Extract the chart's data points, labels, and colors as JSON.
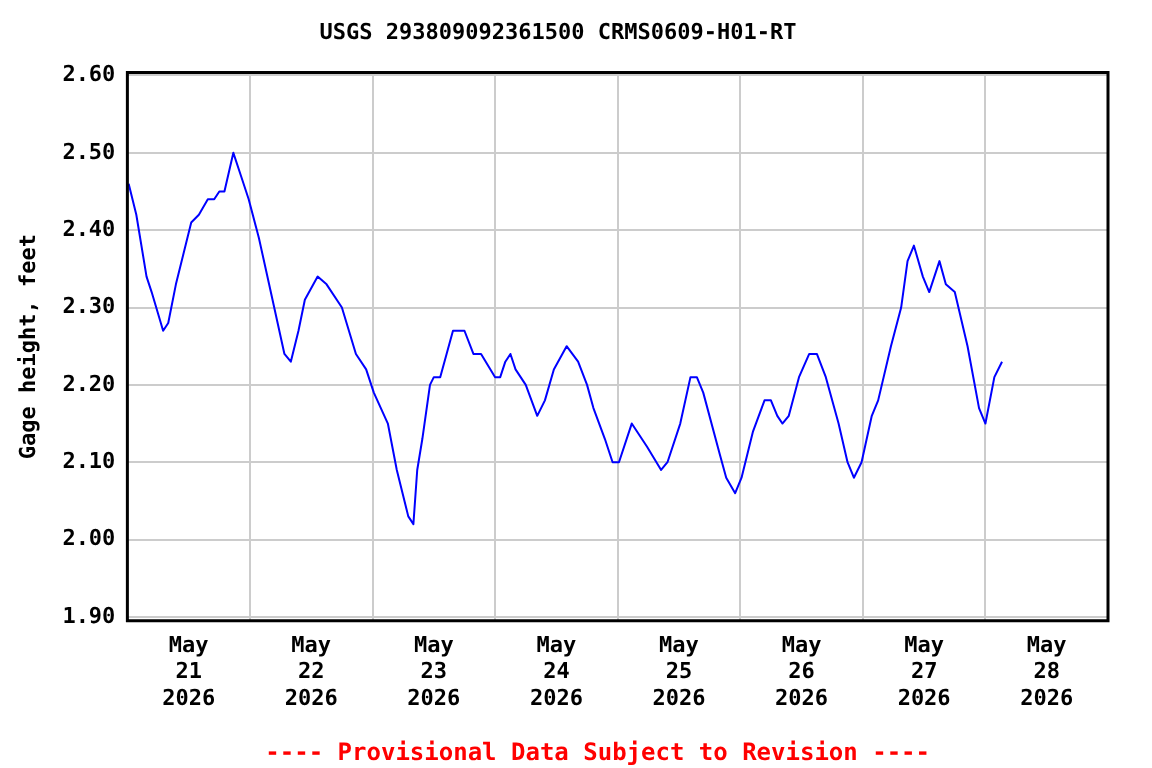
{
  "chart_data": {
    "type": "line",
    "title": "USGS 293809092361500 CRMS0609-H01-RT",
    "ylabel": "Gage height, feet",
    "annotations": [
      "---- Provisional Data Subject to Revision ----"
    ],
    "x": [
      "2026-05-21T00:15",
      "2026-05-21T01:45",
      "2026-05-21T03:45",
      "2026-05-21T04:45",
      "2026-05-21T07:00",
      "2026-05-21T08:00",
      "2026-05-21T09:30",
      "2026-05-21T12:30",
      "2026-05-21T14:00",
      "2026-05-21T15:45",
      "2026-05-21T17:00",
      "2026-05-21T18:00",
      "2026-05-21T19:00",
      "2026-05-21T20:45",
      "2026-05-21T22:15",
      "2026-05-21T23:45",
      "2026-05-22T01:45",
      "2026-05-22T03:45",
      "2026-05-22T06:45",
      "2026-05-22T08:00",
      "2026-05-22T09:30",
      "2026-05-22T10:45",
      "2026-05-22T13:15",
      "2026-05-22T15:00",
      "2026-05-22T18:00",
      "2026-05-22T20:45",
      "2026-05-22T22:45",
      "2026-05-23T00:15",
      "2026-05-23T03:00",
      "2026-05-23T04:45",
      "2026-05-23T07:00",
      "2026-05-23T08:00",
      "2026-05-23T08:45",
      "2026-05-23T09:45",
      "2026-05-23T11:15",
      "2026-05-23T12:00",
      "2026-05-23T13:15",
      "2026-05-23T14:30",
      "2026-05-23T15:45",
      "2026-05-23T18:00",
      "2026-05-23T19:45",
      "2026-05-23T21:15",
      "2026-05-24T00:00",
      "2026-05-24T01:00",
      "2026-05-24T02:00",
      "2026-05-24T03:00",
      "2026-05-24T04:00",
      "2026-05-24T06:00",
      "2026-05-24T08:15",
      "2026-05-24T09:45",
      "2026-05-24T11:30",
      "2026-05-24T14:00",
      "2026-05-24T16:15",
      "2026-05-24T18:00",
      "2026-05-24T19:15",
      "2026-05-24T21:30",
      "2026-05-24T23:00",
      "2026-05-25T00:15",
      "2026-05-25T02:45",
      "2026-05-25T05:45",
      "2026-05-25T08:30",
      "2026-05-25T09:45",
      "2026-05-25T12:15",
      "2026-05-25T14:15",
      "2026-05-25T15:30",
      "2026-05-25T16:45",
      "2026-05-25T20:00",
      "2026-05-25T21:15",
      "2026-05-25T23:00",
      "2026-05-26T00:15",
      "2026-05-26T02:30",
      "2026-05-26T04:45",
      "2026-05-26T06:00",
      "2026-05-26T07:15",
      "2026-05-26T08:15",
      "2026-05-26T09:30",
      "2026-05-26T11:30",
      "2026-05-26T13:30",
      "2026-05-26T15:00",
      "2026-05-26T16:45",
      "2026-05-26T19:15",
      "2026-05-26T21:00",
      "2026-05-26T22:15",
      "2026-05-26T23:45",
      "2026-05-27T01:45",
      "2026-05-27T03:00",
      "2026-05-27T05:30",
      "2026-05-27T07:30",
      "2026-05-27T08:45",
      "2026-05-27T10:00",
      "2026-05-27T11:45",
      "2026-05-27T13:00",
      "2026-05-27T15:00",
      "2026-05-27T16:15",
      "2026-05-27T18:00",
      "2026-05-27T20:30",
      "2026-05-27T22:45",
      "2026-05-28T00:00",
      "2026-05-28T01:45",
      "2026-05-28T03:15"
    ],
    "series": [
      {
        "color": "#0000ff",
        "values": [
          2.46,
          2.42,
          2.34,
          2.32,
          2.27,
          2.28,
          2.33,
          2.41,
          2.42,
          2.44,
          2.44,
          2.45,
          2.45,
          2.5,
          2.47,
          2.44,
          2.39,
          2.33,
          2.24,
          2.23,
          2.27,
          2.31,
          2.34,
          2.33,
          2.3,
          2.24,
          2.22,
          2.19,
          2.15,
          2.09,
          2.03,
          2.02,
          2.09,
          2.13,
          2.2,
          2.21,
          2.21,
          2.24,
          2.27,
          2.27,
          2.24,
          2.24,
          2.21,
          2.21,
          2.23,
          2.24,
          2.22,
          2.2,
          2.16,
          2.18,
          2.22,
          2.25,
          2.23,
          2.2,
          2.17,
          2.13,
          2.1,
          2.1,
          2.15,
          2.12,
          2.09,
          2.1,
          2.15,
          2.21,
          2.21,
          2.19,
          2.11,
          2.08,
          2.06,
          2.08,
          2.14,
          2.18,
          2.18,
          2.16,
          2.15,
          2.16,
          2.21,
          2.24,
          2.24,
          2.21,
          2.15,
          2.1,
          2.08,
          2.1,
          2.16,
          2.18,
          2.25,
          2.3,
          2.36,
          2.38,
          2.34,
          2.32,
          2.36,
          2.33,
          2.32,
          2.25,
          2.17,
          2.15,
          2.21,
          2.23
        ]
      }
    ],
    "xlim": [
      "2026-05-21T00:00",
      "2026-05-29T00:00"
    ],
    "xticks": [
      {
        "value": "2026-05-21T12:00",
        "label": "May 21 2026"
      },
      {
        "value": "2026-05-22T00:00",
        "label": null
      },
      {
        "value": "2026-05-22T12:00",
        "label": "May 22 2026"
      },
      {
        "value": "2026-05-23T00:00",
        "label": null
      },
      {
        "value": "2026-05-23T12:00",
        "label": "May 23 2026"
      },
      {
        "value": "2026-05-24T00:00",
        "label": null
      },
      {
        "value": "2026-05-24T12:00",
        "label": "May 24 2026"
      },
      {
        "value": "2026-05-25T00:00",
        "label": null
      },
      {
        "value": "2026-05-25T12:00",
        "label": "May 25 2026"
      },
      {
        "value": "2026-05-26T00:00",
        "label": null
      },
      {
        "value": "2026-05-26T12:00",
        "label": "May 26 2026"
      },
      {
        "value": "2026-05-27T00:00",
        "label": null
      },
      {
        "value": "2026-05-27T12:00",
        "label": "May 27 2026"
      },
      {
        "value": "2026-05-28T00:00",
        "label": null
      },
      {
        "value": "2026-05-28T12:00",
        "label": "May 28 2026"
      }
    ],
    "ylim": [
      1.895,
      2.604
    ],
    "yticks": [
      {
        "value": 1.9,
        "label": "1.90"
      },
      {
        "value": 2.0,
        "label": "2.00"
      },
      {
        "value": 2.1,
        "label": "2.10"
      },
      {
        "value": 2.2,
        "label": "2.20"
      },
      {
        "value": 2.3,
        "label": "2.30"
      },
      {
        "value": 2.4,
        "label": "2.40"
      },
      {
        "value": 2.5,
        "label": "2.50"
      },
      {
        "value": 2.6,
        "label": "2.60"
      }
    ],
    "grid": true,
    "marker": "none",
    "line_style": "solid",
    "legend": false
  }
}
